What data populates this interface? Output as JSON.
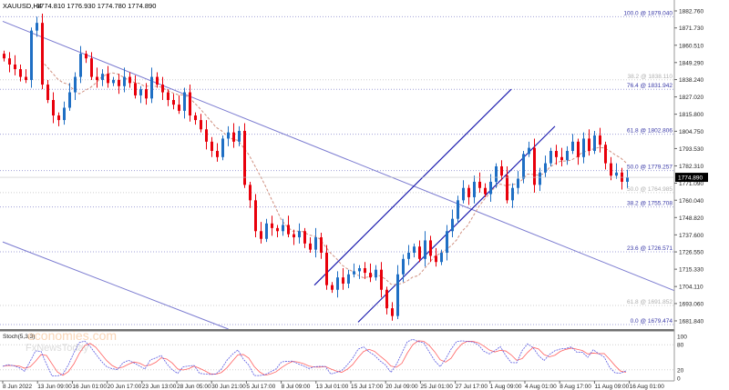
{
  "header": {
    "symbol": "XAUUSD,H4",
    "ohlc_readout": "1774.810 1776.930 1774.780 1774.890"
  },
  "watermark": {
    "brand1": "economies.com",
    "brand2": "FxNewsToday"
  },
  "colors": {
    "bull": "#1f6fc4",
    "bear": "#e8000b",
    "fib_main": "#3a3aa8",
    "fib_secondary": "#b0b0b0",
    "trendline": "#7a7ad0",
    "channel": "#2020b0",
    "moving_average": "#d09080",
    "stoch_main": "#5a5ae0",
    "stoch_signal": "#ff6060"
  },
  "chart_data": [
    {
      "type": "candlestick",
      "title": "XAUUSD,H4",
      "current_price": "1774.890",
      "ylim": [
        1679,
        1884
      ],
      "y_ticks": [
        "1882.760",
        "1871.730",
        "1860.510",
        "1849.290",
        "1838.240",
        "1827.020",
        "1815.800",
        "1804.750",
        "1793.530",
        "1782.310",
        "1771.090",
        "1760.040",
        "1748.820",
        "1737.600",
        "1726.550",
        "1715.330",
        "1704.110",
        "1693.060",
        "1681.840"
      ],
      "x_ticks": [
        "8 Jun 2022",
        "13 Jun 09:00",
        "16 Jun 01:00",
        "20 Jun 17:00",
        "23 Jun 13:00",
        "28 Jun 05:00",
        "30 Jun 21:00",
        "5 Jul 17:00",
        "8 Jul 09:00",
        "13 Jul 01:00",
        "15 Jul 17:00",
        "20 Jul 09:00",
        "25 Jul 01:00",
        "27 Jul 17:00",
        "1 Aug 09:00",
        "4 Aug 01:00",
        "8 Aug 17:00",
        "11 Aug 09:00",
        "16 Aug 01:00"
      ],
      "first_open": 1855,
      "close": [
        1852,
        1848,
        1845,
        1840,
        1838,
        1870,
        1875,
        1835,
        1825,
        1815,
        1812,
        1820,
        1830,
        1840,
        1855,
        1852,
        1840,
        1838,
        1842,
        1836,
        1838,
        1834,
        1840,
        1836,
        1828,
        1832,
        1826,
        1840,
        1835,
        1830,
        1825,
        1822,
        1818,
        1830,
        1815,
        1812,
        1806,
        1798,
        1792,
        1788,
        1800,
        1804,
        1798,
        1805,
        1770,
        1760,
        1740,
        1735,
        1745,
        1742,
        1740,
        1744,
        1738,
        1736,
        1740,
        1732,
        1728,
        1736,
        1726,
        1705,
        1702,
        1710,
        1706,
        1712,
        1714,
        1716,
        1713,
        1710,
        1715,
        1702,
        1690,
        1685,
        1712,
        1722,
        1726,
        1730,
        1722,
        1734,
        1724,
        1720,
        1726,
        1740,
        1748,
        1760,
        1768,
        1762,
        1772,
        1768,
        1764,
        1772,
        1782,
        1776,
        1760,
        1768,
        1774,
        1790,
        1794,
        1770,
        1778,
        1784,
        1792,
        1788,
        1786,
        1792,
        1798,
        1788,
        1800,
        1792,
        1802,
        1796,
        1784,
        1776,
        1778,
        1772,
        1774.89
      ],
      "fibonacci_levels": [
        {
          "label": "100.0 @ 1879.040",
          "price": 1879.04,
          "style": "main"
        },
        {
          "label": "38.2 @ 1838.110",
          "price": 1838.11,
          "style": "secondary"
        },
        {
          "label": "76.4 @ 1831.942",
          "price": 1831.942,
          "style": "main"
        },
        {
          "label": "61.8 @ 1802.806",
          "price": 1802.806,
          "style": "main"
        },
        {
          "label": "50.0 @ 1779.257",
          "price": 1779.257,
          "style": "main"
        },
        {
          "label": "50.0 @ 1764.985",
          "price": 1764.985,
          "style": "secondary"
        },
        {
          "label": "38.2 @ 1755.708",
          "price": 1755.708,
          "style": "main"
        },
        {
          "label": "23.6 @ 1726.571",
          "price": 1726.571,
          "style": "main"
        },
        {
          "label": "61.8 @ 1691.852",
          "price": 1691.852,
          "style": "secondary"
        },
        {
          "label": "0.0 @ 1679.474",
          "price": 1679.474,
          "style": "main"
        }
      ],
      "trendlines": [
        {
          "from": [
            0,
            1876
          ],
          "to": [
            114,
            1714
          ]
        },
        {
          "from": [
            0,
            1733
          ],
          "to": [
            38,
            1681
          ]
        }
      ],
      "channel_lines": [
        {
          "from": [
            57,
            1705
          ],
          "to": [
            93,
            1832
          ]
        },
        {
          "from": [
            65,
            1681
          ],
          "to": [
            101,
            1808
          ]
        }
      ],
      "moving_average_period": 8
    },
    {
      "type": "line",
      "title": "Stoch(5,3,3)",
      "ylim": [
        0,
        100
      ],
      "y_ticks": [
        "100",
        "80",
        "20",
        "0"
      ],
      "levels": [
        80,
        20
      ],
      "k_period": 5,
      "d_period": 3,
      "slowing": 3
    }
  ]
}
